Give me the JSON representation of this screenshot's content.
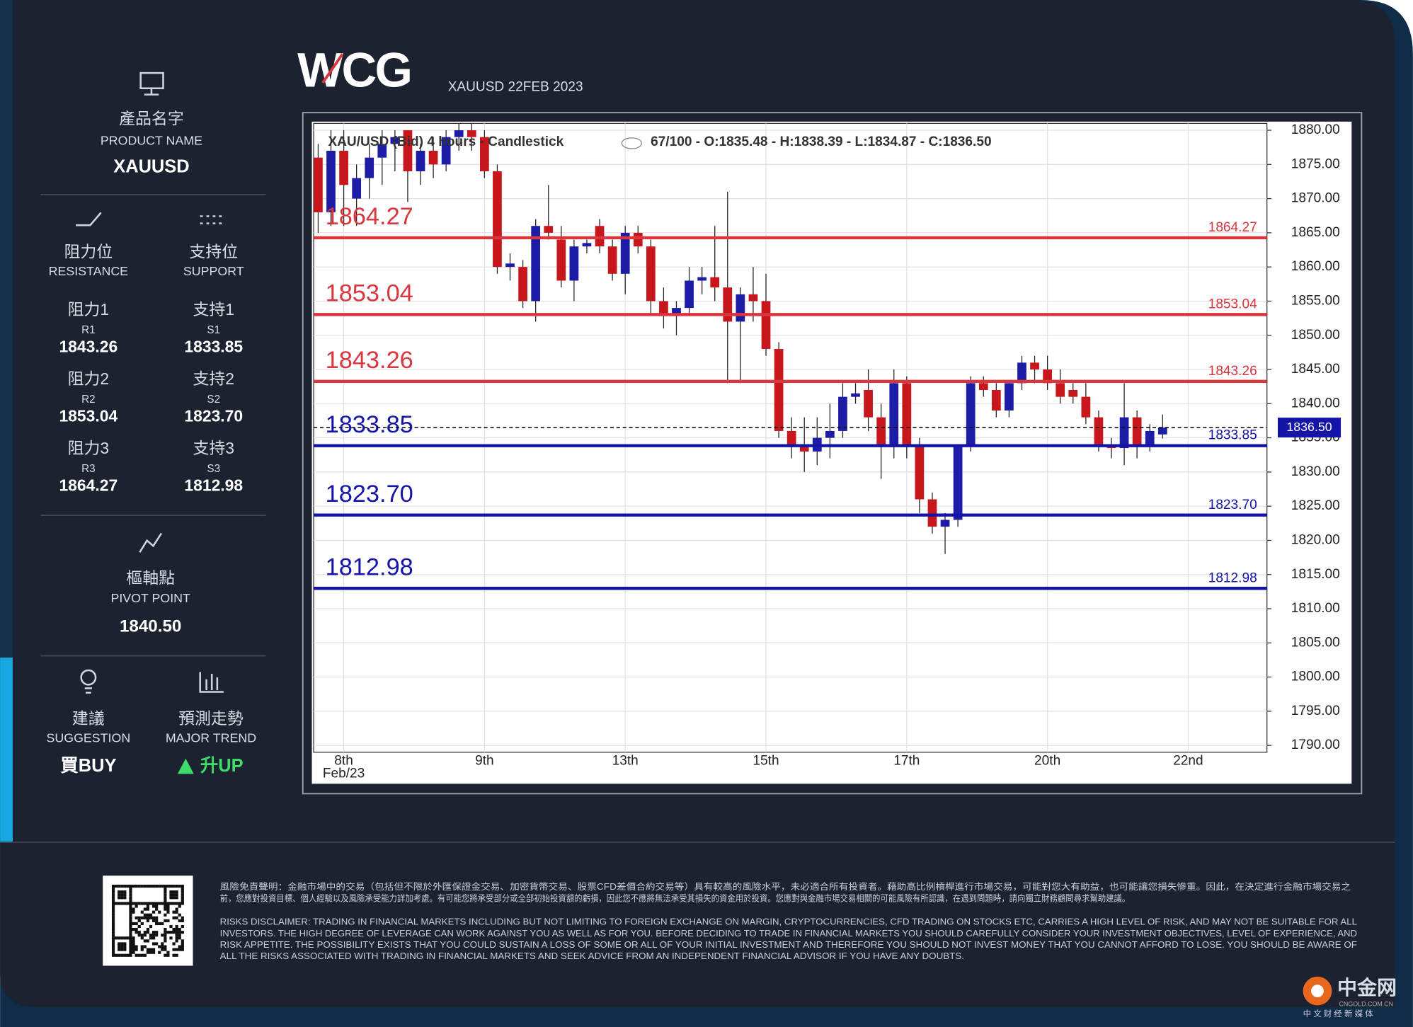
{
  "header": {
    "logo": "WCG",
    "subtitle": "XAUUSD 22FEB 2023"
  },
  "sidebar": {
    "product": {
      "label_zh": "產品名字",
      "label_en": "PRODUCT NAME",
      "value": "XAUUSD"
    },
    "resistance_heading": {
      "label_zh": "阻力位",
      "label_en": "RESISTANCE"
    },
    "support_heading": {
      "label_zh": "支持位",
      "label_en": "SUPPORT"
    },
    "pivot": {
      "label_zh": "樞軸點",
      "label_en": "PIVOT POINT",
      "value": "1840.50"
    },
    "suggestion": {
      "label_zh": "建議",
      "label_en": "SUGGESTION",
      "value": "買BUY"
    },
    "trend": {
      "label_zh": "預測走勢",
      "label_en": "MAJOR TREND",
      "value": "升UP"
    }
  },
  "chart_data": {
    "type": "candlestick",
    "info_title": "XAU/USD (Bid) 4 hours - Candlestick",
    "info_ohlc": "67/100 - O:1835.48 - H:1838.39 - L:1834.87 - C:1836.50",
    "categories": [
      null,
      null,
      "8th",
      null,
      null,
      null,
      null,
      null,
      null,
      null,
      null,
      null,
      null,
      "9th",
      null,
      null,
      null,
      null,
      null,
      null,
      null,
      null,
      null,
      null,
      "13th",
      null,
      null,
      null,
      null,
      null,
      null,
      null,
      null,
      null,
      null,
      "15th",
      null,
      null,
      null,
      null,
      null,
      null,
      null,
      null,
      null,
      null,
      "17th",
      null,
      null,
      null,
      null,
      null,
      null,
      null,
      null,
      null,
      null,
      "20th",
      null,
      null,
      null,
      null,
      null,
      null,
      null,
      null,
      null,
      null,
      "22nd"
    ],
    "x_sublabel": "Feb/23",
    "open": [
      1876,
      1868,
      1877,
      1870,
      1873,
      1876,
      1878,
      1880,
      1874,
      1877,
      1875,
      1879,
      1880,
      1879,
      1874,
      1860,
      1860,
      1855,
      1866,
      1864,
      1858,
      1863,
      1866,
      1863,
      1859,
      1865,
      1863,
      1855,
      1853,
      1854,
      1858,
      1858.5,
      1857,
      1852,
      1856,
      1855,
      1848,
      1836,
      1834,
      1833,
      1835,
      1836,
      1841,
      1842,
      1838,
      1834,
      1843,
      1834,
      1826,
      1822,
      1823,
      1834,
      1843,
      1842,
      1839,
      1843,
      1846,
      1845,
      1843,
      1842,
      1841,
      1838,
      1834,
      1833.5,
      1838,
      1834,
      1835.5,
      null,
      null
    ],
    "high": [
      1878,
      1880,
      1880,
      1875,
      1878,
      1880,
      1880,
      1880,
      1878,
      1879,
      1880,
      1881,
      1881,
      1880,
      1875,
      1862,
      1861,
      1867,
      1872,
      1866,
      1864,
      1864,
      1867,
      1864,
      1866,
      1866,
      1864,
      1857,
      1855,
      1860,
      1860,
      1866,
      1871,
      1857,
      1860,
      1859,
      1849,
      1838,
      1838,
      1838,
      1840,
      1843,
      1843,
      1845,
      1840,
      1845,
      1844,
      1835,
      1827,
      1824,
      1834,
      1844,
      1844,
      1843,
      1843,
      1847,
      1847,
      1847,
      1845,
      1843,
      1843,
      1839,
      1835,
      1843,
      1839,
      1837,
      1838.4,
      null,
      null
    ],
    "low": [
      1865,
      1866,
      1866,
      1866,
      1870,
      1872,
      1874,
      1869.5,
      1872,
      1873,
      1874,
      1877,
      1877,
      1873,
      1859,
      1858,
      1854,
      1852,
      1864,
      1857,
      1855,
      1862,
      1862,
      1858,
      1856,
      1862,
      1853,
      1851,
      1850,
      1853,
      1856,
      1855,
      1843,
      1843,
      1852,
      1847,
      1835,
      1832,
      1830,
      1831,
      1832,
      1835,
      1840,
      1836,
      1829,
      1832,
      1832,
      1824,
      1821,
      1818,
      1822,
      1833,
      1841,
      1838,
      1838,
      1842,
      1843,
      1842,
      1840,
      1840,
      1837,
      1833,
      1832,
      1831,
      1832,
      1833,
      1834.9,
      null,
      null
    ],
    "close": [
      1868,
      1877,
      1872,
      1873,
      1876,
      1878,
      1879,
      1874,
      1877,
      1875,
      1879,
      1880,
      1879,
      1874,
      1860,
      1860.5,
      1855,
      1866,
      1865,
      1858,
      1863,
      1863.5,
      1863,
      1859,
      1865,
      1863,
      1855,
      1853,
      1854,
      1858,
      1858.5,
      1857,
      1852,
      1856,
      1855,
      1848,
      1836,
      1834,
      1833,
      1835,
      1836,
      1841,
      1841.5,
      1838,
      1834,
      1843,
      1834,
      1826,
      1822,
      1823,
      1834,
      1843,
      1842,
      1839,
      1843,
      1846,
      1845,
      1843,
      1841,
      1841,
      1838,
      1834,
      1833.5,
      1838,
      1834,
      1836,
      1836.5,
      null,
      null
    ],
    "up_color": "#1c1ca6",
    "down_color": "#c8161d",
    "resistance_color": "#d9363e",
    "support_color": "#1414a8",
    "resistance": [
      {
        "label_zh": "阻力1",
        "code": "R1",
        "value": 1843.26,
        "label": "1843.26"
      },
      {
        "label_zh": "阻力2",
        "code": "R2",
        "value": 1853.04,
        "label": "1853.04"
      },
      {
        "label_zh": "阻力3",
        "code": "R3",
        "value": 1864.27,
        "label": "1864.27"
      }
    ],
    "support": [
      {
        "label_zh": "支持1",
        "code": "S1",
        "value": 1833.85,
        "label": "1833.85"
      },
      {
        "label_zh": "支持2",
        "code": "S2",
        "value": 1823.7,
        "label": "1823.70"
      },
      {
        "label_zh": "支持3",
        "code": "S3",
        "value": 1812.98,
        "label": "1812.98"
      }
    ],
    "last_price": {
      "value": 1836.5,
      "label": "1836.50"
    },
    "ylim": [
      1789,
      1881
    ],
    "yticks": [
      {
        "value": 1790,
        "label": "1790.00"
      },
      {
        "value": 1795,
        "label": "1795.00"
      },
      {
        "value": 1800,
        "label": "1800.00"
      },
      {
        "value": 1805,
        "label": "1805.00"
      },
      {
        "value": 1810,
        "label": "1810.00"
      },
      {
        "value": 1815,
        "label": "1815.00"
      },
      {
        "value": 1820,
        "label": "1820.00"
      },
      {
        "value": 1825,
        "label": "1825.00"
      },
      {
        "value": 1830,
        "label": "1830.00"
      },
      {
        "value": 1835,
        "label": "1835.00"
      },
      {
        "value": 1840,
        "label": "1840.00"
      },
      {
        "value": 1845,
        "label": "1845.00"
      },
      {
        "value": 1850,
        "label": "1850.00"
      },
      {
        "value": 1855,
        "label": "1855.00"
      },
      {
        "value": 1860,
        "label": "1860.00"
      },
      {
        "value": 1865,
        "label": "1865.00"
      },
      {
        "value": 1870,
        "label": "1870.00"
      },
      {
        "value": 1875,
        "label": "1875.00"
      },
      {
        "value": 1880,
        "label": "1880.00"
      }
    ],
    "grid": true
  },
  "disclaimer": {
    "zh": [
      "風險免責聲明：金融市場中的交易（包括但不限於外匯保證金交易、加密貨幣交易、股票CFD差價合約交易等）具有較高的風險水平，未必適合所有投資者。藉助高比例槓桿進行市場交易，可能對您大有助益，也可能讓您損失慘重。因此，在決定進行金融市場交易之",
      "前，您應對投資目標、個人經驗以及風險承受能力詳加考慮。有可能您將承受部分或全部初始投資額的虧損，因此您不應將無法承受其損失的資金用於投資。您應對與金融市場交易相關的可能風險有所認識，在遇到問題時，請向獨立財務顧問尋求幫助建議。"
    ],
    "en": [
      "RISKS DISCLAIMER: TRADING IN FINANCIAL MARKETS INCLUDING BUT NOT LIMITING TO FOREIGN EXCHANGE ON MARGIN, CRYPTOCURRENCIES, CFD TRADING ON STOCKS ETC, CARRIES A HIGH LEVEL OF RISK, AND MAY NOT BE SUITABLE FOR ALL",
      "INVESTORS. THE HIGH DEGREE OF LEVERAGE CAN WORK AGAINST YOU AS WELL AS FOR YOU. BEFORE DECIDING TO TRADE IN FINANCIAL MARKETS YOU SHOULD CAREFULLY CONSIDER YOUR INVESTMENT OBJECTIVES, LEVEL OF EXPERIENCE, AND",
      "RISK APPETITE. THE POSSIBILITY EXISTS THAT YOU COULD SUSTAIN A LOSS OF SOME OR ALL OF YOUR INITIAL INVESTMENT AND THEREFORE YOU SHOULD NOT INVEST MONEY THAT YOU CANNOT AFFORD TO LOSE. YOU SHOULD BE AWARE OF",
      "ALL THE RISKS ASSOCIATED WITH TRADING IN FINANCIAL MARKETS AND SEEK ADVICE FROM AN INDEPENDENT FINANCIAL ADVISOR IF YOU HAVE ANY DOUBTS."
    ]
  },
  "watermark": {
    "brand": "中金网",
    "domain": "CNGOLD.COM.CN",
    "tagline": "中 文 财 经 新 媒 体"
  }
}
